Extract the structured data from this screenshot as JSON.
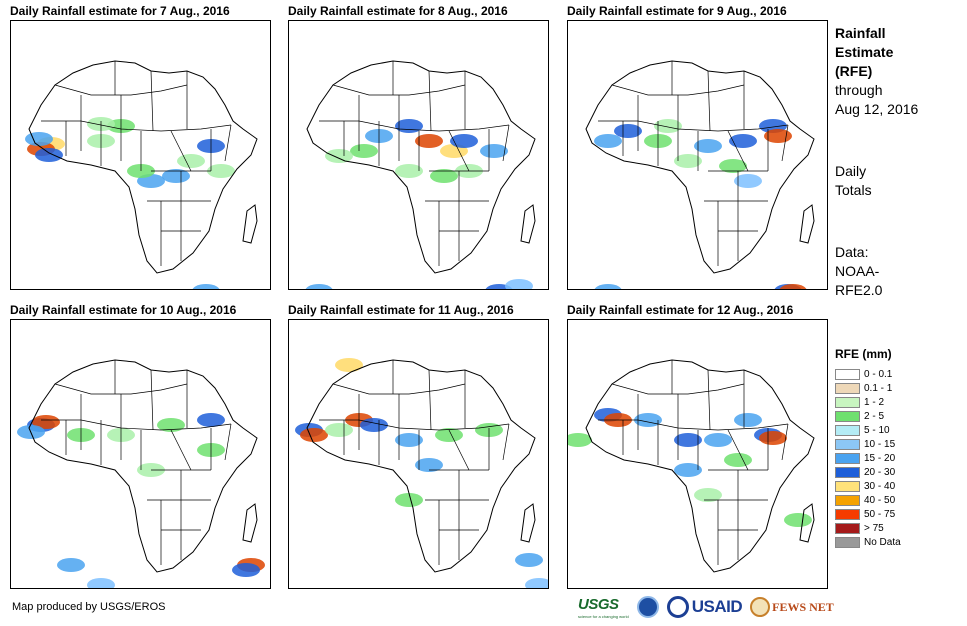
{
  "panels": [
    {
      "title": "Daily Rainfall estimate for 7 Aug., 2016",
      "rain": [
        [
          40,
          123,
          "#ffd966"
        ],
        [
          30,
          128,
          "#dd4400"
        ],
        [
          38,
          134,
          "#1e5fd9"
        ],
        [
          28,
          118,
          "#4aa3f0"
        ],
        [
          110,
          105,
          "#6fe06f"
        ],
        [
          140,
          160,
          "#4aa3f0"
        ],
        [
          165,
          155,
          "#4aa3f0"
        ],
        [
          200,
          125,
          "#1e5fd9"
        ],
        [
          130,
          150,
          "#6fe06f"
        ],
        [
          180,
          140,
          "#a9f0a9"
        ],
        [
          90,
          120,
          "#a9f0a9"
        ],
        [
          210,
          150,
          "#a9f0a9"
        ],
        [
          195,
          270,
          "#4aa3f0"
        ],
        [
          220,
          275,
          "#7cc0ff"
        ],
        [
          90,
          103,
          "#a9f0a9"
        ]
      ]
    },
    {
      "title": "Daily Rainfall estimate for 8 Aug., 2016",
      "rain": [
        [
          140,
          120,
          "#dd4400"
        ],
        [
          165,
          130,
          "#ffd966"
        ],
        [
          175,
          120,
          "#1e5fd9"
        ],
        [
          120,
          105,
          "#1e5fd9"
        ],
        [
          90,
          115,
          "#4aa3f0"
        ],
        [
          75,
          130,
          "#6fe06f"
        ],
        [
          205,
          130,
          "#4aa3f0"
        ],
        [
          155,
          155,
          "#6fe06f"
        ],
        [
          120,
          150,
          "#a9f0a9"
        ],
        [
          50,
          135,
          "#a9f0a9"
        ],
        [
          210,
          270,
          "#1e5fd9"
        ],
        [
          210,
          275,
          "#dd4400"
        ],
        [
          30,
          270,
          "#4aa3f0"
        ],
        [
          230,
          265,
          "#7cc0ff"
        ],
        [
          180,
          150,
          "#a9f0a9"
        ]
      ]
    },
    {
      "title": "Daily Rainfall estimate for 9 Aug., 2016",
      "rain": [
        [
          40,
          120,
          "#4aa3f0"
        ],
        [
          60,
          110,
          "#1e5fd9"
        ],
        [
          90,
          120,
          "#6fe06f"
        ],
        [
          140,
          125,
          "#4aa3f0"
        ],
        [
          175,
          120,
          "#1e5fd9"
        ],
        [
          205,
          105,
          "#1e5fd9"
        ],
        [
          210,
          115,
          "#dd4400"
        ],
        [
          165,
          145,
          "#6fe06f"
        ],
        [
          120,
          140,
          "#a9f0a9"
        ],
        [
          40,
          270,
          "#4aa3f0"
        ],
        [
          220,
          270,
          "#1e5fd9"
        ],
        [
          225,
          270,
          "#dd4400"
        ],
        [
          100,
          105,
          "#a9f0a9"
        ],
        [
          180,
          160,
          "#7cc0ff"
        ]
      ]
    },
    {
      "title": "Daily Rainfall estimate for 10 Aug., 2016",
      "rain": [
        [
          30,
          105,
          "#1e5fd9"
        ],
        [
          35,
          102,
          "#dd4400"
        ],
        [
          20,
          112,
          "#4aa3f0"
        ],
        [
          70,
          115,
          "#6fe06f"
        ],
        [
          110,
          115,
          "#a9f0a9"
        ],
        [
          160,
          105,
          "#6fe06f"
        ],
        [
          200,
          100,
          "#1e5fd9"
        ],
        [
          140,
          150,
          "#a9f0a9"
        ],
        [
          60,
          245,
          "#4aa3f0"
        ],
        [
          90,
          265,
          "#7cc0ff"
        ],
        [
          240,
          245,
          "#dd4400"
        ],
        [
          235,
          250,
          "#1e5fd9"
        ],
        [
          200,
          130,
          "#6fe06f"
        ]
      ]
    },
    {
      "title": "Daily Rainfall estimate for 11 Aug., 2016",
      "rain": [
        [
          70,
          100,
          "#dd4400"
        ],
        [
          85,
          105,
          "#1e5fd9"
        ],
        [
          20,
          110,
          "#1e5fd9"
        ],
        [
          25,
          115,
          "#dd4400"
        ],
        [
          120,
          120,
          "#4aa3f0"
        ],
        [
          160,
          115,
          "#6fe06f"
        ],
        [
          140,
          145,
          "#4aa3f0"
        ],
        [
          200,
          110,
          "#6fe06f"
        ],
        [
          120,
          180,
          "#6fe06f"
        ],
        [
          240,
          240,
          "#4aa3f0"
        ],
        [
          250,
          265,
          "#7cc0ff"
        ],
        [
          50,
          110,
          "#a9f0a9"
        ],
        [
          60,
          45,
          "#ffd966"
        ]
      ]
    },
    {
      "title": "Daily Rainfall estimate for 12 Aug., 2016",
      "rain": [
        [
          40,
          95,
          "#1e5fd9"
        ],
        [
          50,
          100,
          "#dd4400"
        ],
        [
          80,
          100,
          "#4aa3f0"
        ],
        [
          120,
          120,
          "#1e5fd9"
        ],
        [
          150,
          120,
          "#4aa3f0"
        ],
        [
          200,
          115,
          "#1e5fd9"
        ],
        [
          205,
          118,
          "#dd4400"
        ],
        [
          170,
          140,
          "#6fe06f"
        ],
        [
          120,
          150,
          "#4aa3f0"
        ],
        [
          140,
          175,
          "#a9f0a9"
        ],
        [
          10,
          120,
          "#6fe06f"
        ],
        [
          230,
          200,
          "#6fe06f"
        ],
        [
          180,
          100,
          "#4aa3f0"
        ]
      ]
    }
  ],
  "side": {
    "title_line1": "Rainfall",
    "title_line2": "Estimate",
    "title_line3": "(RFE)",
    "through": "through",
    "date": "Aug 12, 2016",
    "daily1": "Daily",
    "daily2": "Totals",
    "data1": "Data:",
    "data2": "NOAA-",
    "data3": "RFE2.0"
  },
  "legend": {
    "title": "RFE (mm)",
    "items": [
      {
        "label": "0 - 0.1",
        "color": "#ffffff"
      },
      {
        "label": "0.1 - 1",
        "color": "#eed8b8"
      },
      {
        "label": "1 - 2",
        "color": "#c8f5c0"
      },
      {
        "label": "2 - 5",
        "color": "#6fe06f"
      },
      {
        "label": "5 - 10",
        "color": "#b4ecf5"
      },
      {
        "label": "10 - 15",
        "color": "#8cc7f5"
      },
      {
        "label": "15 - 20",
        "color": "#4aa3f0"
      },
      {
        "label": "20 - 30",
        "color": "#1e5fd9"
      },
      {
        "label": "30 - 40",
        "color": "#ffe27a"
      },
      {
        "label": "40 - 50",
        "color": "#f5a200"
      },
      {
        "label": "50 - 75",
        "color": "#f53b00"
      },
      {
        "label": "> 75",
        "color": "#a51a1a"
      },
      {
        "label": "No Data",
        "color": "#999999"
      }
    ]
  },
  "footer": {
    "credit": "Map produced by USGS/EROS",
    "usgs": "USGS",
    "usgs_tag": "science for a changing world",
    "usaid": "USAID",
    "fews": "FEWS NET"
  }
}
